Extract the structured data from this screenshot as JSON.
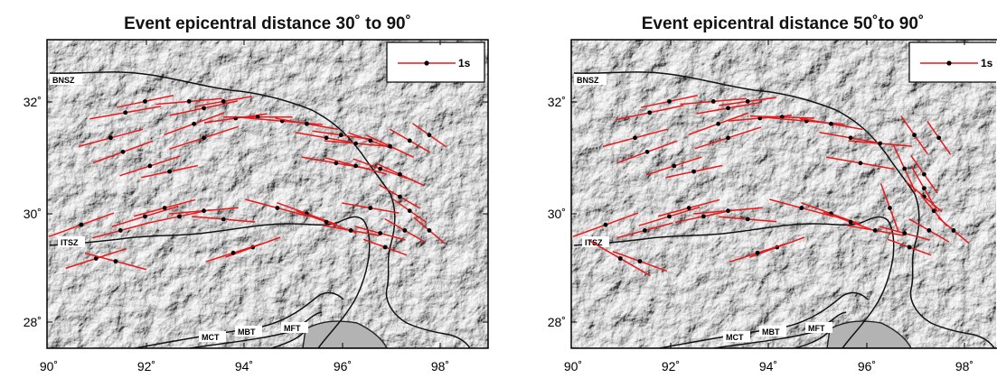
{
  "figure": {
    "panels": [
      {
        "title": "Event epicentral distance 30˚ to 90˚",
        "legend_label": "1s",
        "x_ticks": [
          "90˚",
          "92˚",
          "94˚",
          "96˚",
          "98˚"
        ],
        "y_ticks": [
          "28˚",
          "30˚",
          "32˚"
        ],
        "fault_labels": [
          "BNSZ",
          "ITSZ",
          "MCT",
          "MBT",
          "MFT"
        ]
      },
      {
        "title": "Event epicentral distance 50˚to 90˚",
        "legend_label": "1s",
        "x_ticks": [
          "90˚",
          "92˚",
          "94˚",
          "96˚",
          "98˚"
        ],
        "y_ticks": [
          "28˚",
          "30˚",
          "32˚"
        ],
        "fault_labels": [
          "BNSZ",
          "ITSZ",
          "MCT",
          "MBT",
          "MFT"
        ]
      }
    ],
    "colors": {
      "split_bar": "#e41a1c",
      "station": "#000000",
      "fault": "#111111",
      "terrain": "#d6d6d6"
    }
  },
  "chart_data": [
    {
      "type": "map",
      "title": "Event epicentral distance 30˚ to 90˚",
      "xlim": [
        90,
        99
      ],
      "ylim": [
        27.5,
        33
      ],
      "x_ticks": [
        90,
        92,
        94,
        96,
        98
      ],
      "y_ticks": [
        28,
        30,
        32
      ],
      "legend": {
        "label": "1s",
        "placement": "top-right"
      },
      "stations": [
        [
          91.6,
          31.7,
          80,
          2.5
        ],
        [
          91.3,
          31.25,
          75,
          2.3
        ],
        [
          91.55,
          31.0,
          70,
          2.2
        ],
        [
          92.0,
          31.9,
          78,
          2.0
        ],
        [
          92.1,
          30.75,
          72,
          2.2
        ],
        [
          92.5,
          30.65,
          78,
          2.0
        ],
        [
          92.9,
          31.9,
          85,
          2.3
        ],
        [
          93.0,
          31.5,
          70,
          2.2
        ],
        [
          93.2,
          31.25,
          72,
          2.5
        ],
        [
          93.2,
          31.78,
          78,
          2.4
        ],
        [
          93.6,
          31.9,
          80,
          2.0
        ],
        [
          93.85,
          31.6,
          82,
          2.2
        ],
        [
          94.3,
          31.62,
          90,
          2.4
        ],
        [
          94.8,
          31.55,
          95,
          2.8
        ],
        [
          95.3,
          31.5,
          100,
          2.2
        ],
        [
          95.7,
          31.25,
          100,
          2.2
        ],
        [
          96.0,
          31.3,
          98,
          2.0
        ],
        [
          96.3,
          31.15,
          95,
          2.2
        ],
        [
          96.6,
          31.2,
          110,
          1.6
        ],
        [
          97.0,
          31.1,
          115,
          1.8
        ],
        [
          97.4,
          31.2,
          120,
          1.6
        ],
        [
          97.8,
          31.3,
          125,
          1.4
        ],
        [
          95.9,
          30.8,
          100,
          2.4
        ],
        [
          96.3,
          30.75,
          105,
          2.2
        ],
        [
          96.8,
          30.7,
          110,
          2.0
        ],
        [
          97.2,
          30.6,
          115,
          1.8
        ],
        [
          97.2,
          30.2,
          120,
          1.6
        ],
        [
          97.4,
          29.95,
          125,
          1.4
        ],
        [
          97.8,
          29.6,
          130,
          1.4
        ],
        [
          90.7,
          29.7,
          70,
          2.4
        ],
        [
          91.0,
          29.1,
          72,
          2.2
        ],
        [
          91.5,
          29.6,
          75,
          2.0
        ],
        [
          91.4,
          29.05,
          105,
          2.2
        ],
        [
          92.0,
          29.85,
          73,
          2.4
        ],
        [
          92.4,
          30.0,
          75,
          2.2
        ],
        [
          92.7,
          29.85,
          78,
          2.2
        ],
        [
          93.2,
          29.95,
          85,
          2.4
        ],
        [
          93.6,
          29.8,
          95,
          2.2
        ],
        [
          94.2,
          29.3,
          70,
          2.0
        ],
        [
          93.8,
          29.2,
          72,
          2.0
        ],
        [
          94.7,
          30.0,
          105,
          2.3
        ],
        [
          95.3,
          29.9,
          110,
          2.2
        ],
        [
          95.7,
          29.75,
          110,
          2.2
        ],
        [
          96.2,
          29.6,
          100,
          2.0
        ],
        [
          96.6,
          30.0,
          100,
          2.0
        ],
        [
          96.8,
          29.55,
          105,
          1.8
        ],
        [
          96.9,
          29.3,
          110,
          1.6
        ],
        [
          97.3,
          29.6,
          120,
          1.6
        ]
      ]
    },
    {
      "type": "map",
      "title": "Event epicentral distance 50˚to 90˚",
      "xlim": [
        90,
        99
      ],
      "ylim": [
        27.5,
        33
      ],
      "x_ticks": [
        90,
        92,
        94,
        96,
        98
      ],
      "y_ticks": [
        28,
        30,
        32
      ],
      "legend": {
        "label": "1s",
        "placement": "top-right"
      },
      "stations": [
        [
          91.6,
          31.7,
          78,
          2.4
        ],
        [
          91.3,
          31.25,
          75,
          2.3
        ],
        [
          91.55,
          31.0,
          70,
          2.2
        ],
        [
          92.0,
          31.9,
          78,
          2.0
        ],
        [
          92.1,
          30.75,
          72,
          2.0
        ],
        [
          92.5,
          30.65,
          78,
          2.0
        ],
        [
          92.9,
          31.9,
          85,
          2.3
        ],
        [
          93.0,
          31.5,
          70,
          2.2
        ],
        [
          93.2,
          31.25,
          72,
          2.4
        ],
        [
          93.2,
          31.78,
          80,
          2.2
        ],
        [
          93.6,
          31.9,
          82,
          2.0
        ],
        [
          93.85,
          31.6,
          85,
          2.2
        ],
        [
          94.3,
          31.62,
          92,
          2.2
        ],
        [
          94.8,
          31.55,
          95,
          2.6
        ],
        [
          95.3,
          31.5,
          100,
          2.2
        ],
        [
          95.7,
          31.25,
          100,
          2.2
        ],
        [
          96.3,
          31.15,
          95,
          2.2
        ],
        [
          97.0,
          31.3,
          145,
          1.6
        ],
        [
          97.5,
          31.25,
          145,
          1.4
        ],
        [
          95.9,
          30.8,
          100,
          2.4
        ],
        [
          96.8,
          30.7,
          155,
          1.8
        ],
        [
          97.2,
          30.6,
          145,
          1.6
        ],
        [
          97.2,
          30.2,
          130,
          1.6
        ],
        [
          97.4,
          29.95,
          140,
          1.4
        ],
        [
          97.8,
          29.6,
          130,
          1.4
        ],
        [
          90.7,
          29.7,
          70,
          2.4
        ],
        [
          91.0,
          29.1,
          120,
          2.4
        ],
        [
          91.5,
          29.6,
          75,
          2.0
        ],
        [
          91.4,
          29.05,
          110,
          2.0
        ],
        [
          92.0,
          29.85,
          73,
          2.2
        ],
        [
          92.4,
          30.0,
          75,
          2.2
        ],
        [
          92.7,
          29.85,
          78,
          2.0
        ],
        [
          93.2,
          29.95,
          85,
          2.4
        ],
        [
          93.6,
          29.8,
          95,
          2.0
        ],
        [
          94.2,
          29.3,
          70,
          2.0
        ],
        [
          93.8,
          29.2,
          72,
          2.0
        ],
        [
          94.7,
          30.0,
          105,
          2.3
        ],
        [
          95.3,
          29.9,
          110,
          2.2
        ],
        [
          95.7,
          29.75,
          110,
          2.0
        ],
        [
          96.2,
          29.6,
          100,
          2.0
        ],
        [
          96.5,
          30.0,
          160,
          1.8
        ],
        [
          96.8,
          29.55,
          105,
          1.8
        ],
        [
          96.9,
          29.3,
          110,
          1.6
        ],
        [
          97.3,
          29.6,
          120,
          1.6
        ],
        [
          97.2,
          30.35,
          150,
          1.8
        ]
      ]
    }
  ]
}
